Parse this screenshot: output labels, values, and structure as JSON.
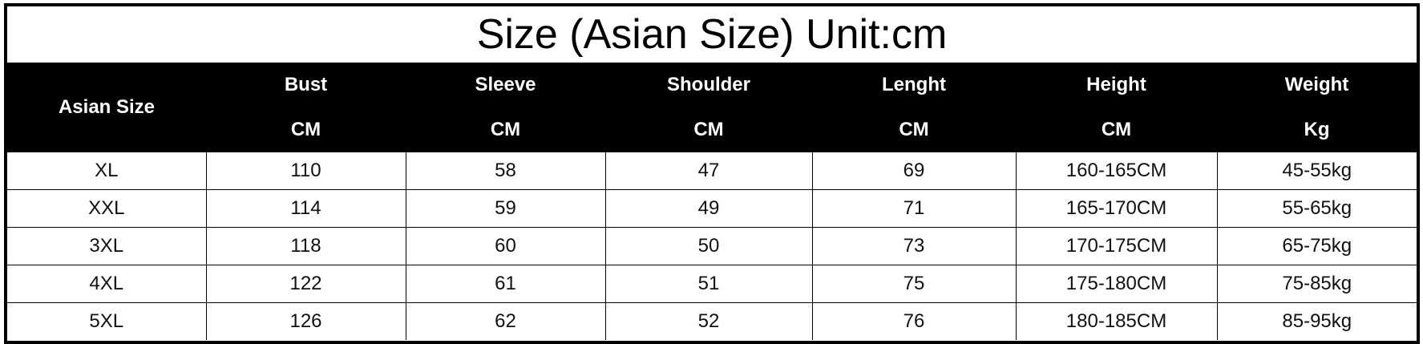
{
  "title": "Size (Asian Size) Unit:cm",
  "header": {
    "first": "Asian Size",
    "columns": [
      {
        "name": "Bust",
        "unit": "CM"
      },
      {
        "name": "Sleeve",
        "unit": "CM"
      },
      {
        "name": "Shoulder",
        "unit": "CM"
      },
      {
        "name": "Lenght",
        "unit": "CM"
      },
      {
        "name": "Height",
        "unit": "CM"
      },
      {
        "name": "Weight",
        "unit": "Kg"
      }
    ]
  },
  "rows": [
    [
      "XL",
      "110",
      "58",
      "47",
      "69",
      "160-165CM",
      "45-55kg"
    ],
    [
      "XXL",
      "114",
      "59",
      "49",
      "71",
      "165-170CM",
      "55-65kg"
    ],
    [
      "3XL",
      "118",
      "60",
      "50",
      "73",
      "170-175CM",
      "65-75kg"
    ],
    [
      "4XL",
      "122",
      "61",
      "51",
      "75",
      "175-180CM",
      "75-85kg"
    ],
    [
      "5XL",
      "126",
      "62",
      "52",
      "76",
      "180-185CM",
      "85-95kg"
    ]
  ],
  "colors": {
    "header_bg": "#000000",
    "header_text": "#ffffff"
  }
}
